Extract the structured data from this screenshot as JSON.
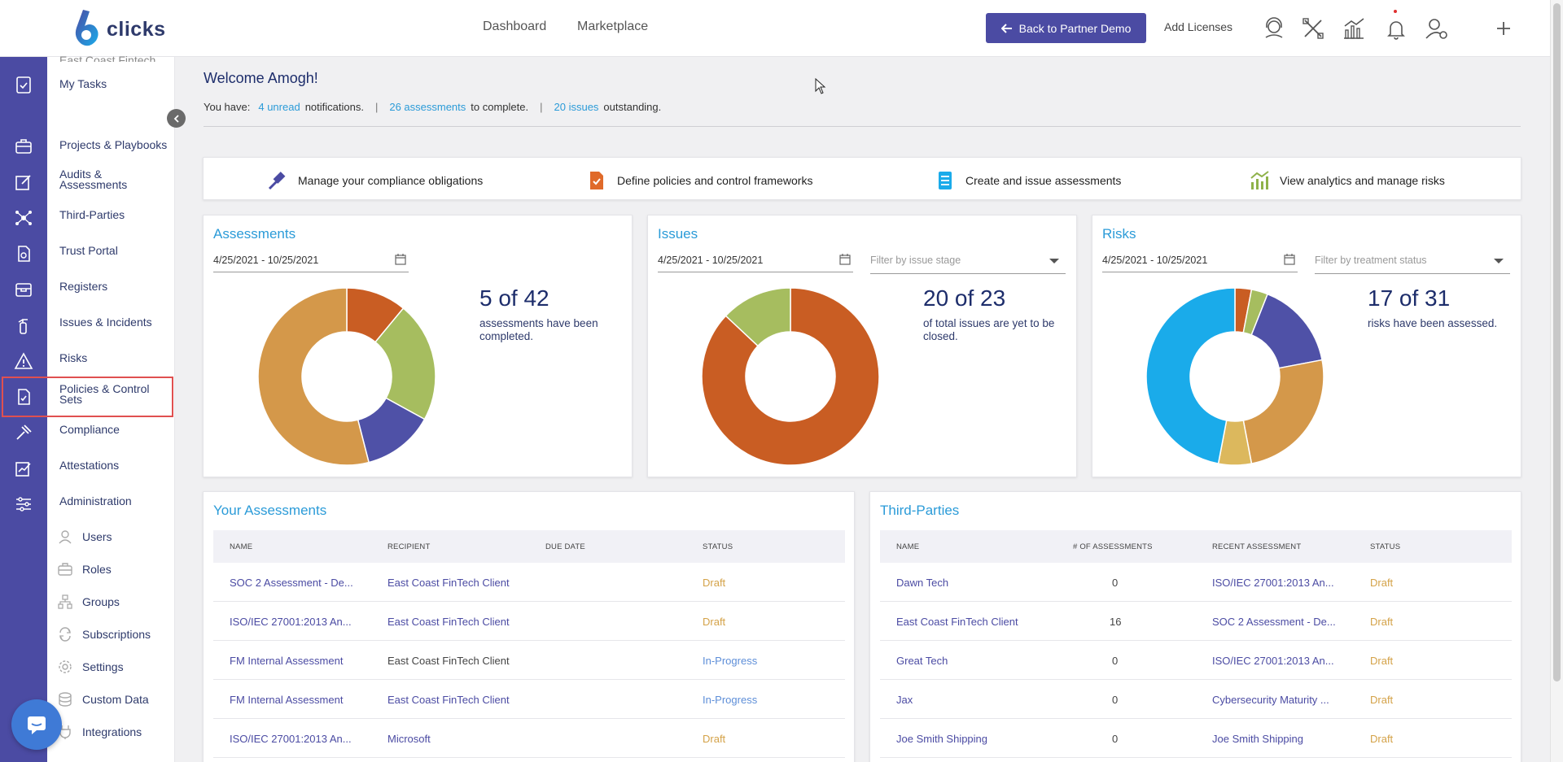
{
  "brand": {
    "logo_text": "clicks"
  },
  "topnav": {
    "dashboard": "Dashboard",
    "marketplace": "Marketplace"
  },
  "header": {
    "back_button": "Back to Partner Demo",
    "add_licenses": "Add Licenses"
  },
  "header_icons": [
    "support-icon",
    "tools-icon",
    "analytics-icon",
    "bell-icon",
    "user-settings-icon",
    "plus-icon"
  ],
  "sidebar": {
    "partial_top": "East Coast Fintech...",
    "items": [
      "My Tasks",
      "Projects & Playbooks",
      "Audits & Assessments",
      "Third-Parties",
      "Trust Portal",
      "Registers",
      "Issues & Incidents",
      "Risks",
      "Policies & Control Sets",
      "Compliance",
      "Attestations",
      "Administration"
    ],
    "admin_items": [
      "Users",
      "Roles",
      "Groups",
      "Subscriptions",
      "Settings",
      "Custom Data",
      "Integrations"
    ],
    "highlighted": "Policies & Control Sets"
  },
  "welcome": {
    "title": "Welcome Amogh!",
    "prefix": "You have:",
    "notifications_link": "4 unread",
    "notifications_text": "notifications.",
    "assessments_link": "26 assessments",
    "assessments_text": "to complete.",
    "issues_link": "20 issues",
    "issues_text": "outstanding.",
    "separator": "|"
  },
  "quick_actions": [
    "Manage your compliance obligations",
    "Define policies and control frameworks",
    "Create and issue assessments",
    "View analytics and manage risks"
  ],
  "colors": {
    "primary": "#4b4ba3",
    "link": "#2b9bd8",
    "draft": "#d4a248",
    "in_progress": "#5d8ed8",
    "highlight": "#e05050"
  },
  "cards": {
    "assessments": {
      "title": "Assessments",
      "date_range": "4/25/2021 - 10/25/2021",
      "stat": "5 of 42",
      "stat_text": "assessments have been completed."
    },
    "issues": {
      "title": "Issues",
      "date_range": "4/25/2021 - 10/25/2021",
      "filter_placeholder": "Filter by issue stage",
      "stat": "20 of 23",
      "stat_text": "of total issues are yet to be closed."
    },
    "risks": {
      "title": "Risks",
      "date_range": "4/25/2021 - 10/25/2021",
      "filter_placeholder": "Filter by treatment status",
      "stat": "17 of 31",
      "stat_text": "risks have been assessed."
    }
  },
  "chart_data": [
    {
      "type": "pie",
      "chart": "assessments",
      "slices": [
        {
          "value": 11,
          "color": "#c95d23"
        },
        {
          "value": 22,
          "color": "#a6bd5f"
        },
        {
          "value": 13,
          "color": "#4f51a7"
        },
        {
          "value": 54,
          "color": "#d4984a"
        }
      ]
    },
    {
      "type": "pie",
      "chart": "issues",
      "slices": [
        {
          "value": 87,
          "color": "#c95d23"
        },
        {
          "value": 13,
          "color": "#a6bd5f"
        }
      ]
    },
    {
      "type": "pie",
      "chart": "risks",
      "slices": [
        {
          "value": 3,
          "color": "#c95d23"
        },
        {
          "value": 3,
          "color": "#a6bd5f"
        },
        {
          "value": 16,
          "color": "#4f51a7"
        },
        {
          "value": 25,
          "color": "#d4984a"
        },
        {
          "value": 6,
          "color": "#dcb85d"
        },
        {
          "value": 47,
          "color": "#1aabea"
        }
      ]
    }
  ],
  "your_assessments": {
    "title": "Your Assessments",
    "columns": [
      "NAME",
      "RECIPIENT",
      "DUE DATE",
      "STATUS"
    ],
    "rows": [
      {
        "name": "SOC 2 Assessment - De...",
        "recipient": "East Coast FinTech Client",
        "due": "",
        "status": "Draft"
      },
      {
        "name": "ISO/IEC 27001:2013 An...",
        "recipient": "East Coast FinTech Client",
        "due": "",
        "status": "Draft"
      },
      {
        "name": "FM Internal Assessment",
        "recipient": "East Coast FinTech Client",
        "due": "",
        "status": "In-Progress"
      },
      {
        "name": "FM Internal Assessment",
        "recipient": "East Coast FinTech Client",
        "due": "",
        "status": "In-Progress"
      },
      {
        "name": "ISO/IEC 27001:2013 An...",
        "recipient": "Microsoft",
        "due": "",
        "status": "Draft"
      }
    ]
  },
  "third_parties": {
    "title": "Third-Parties",
    "columns": [
      "NAME",
      "# OF ASSESSMENTS",
      "RECENT ASSESSMENT",
      "STATUS"
    ],
    "rows": [
      {
        "name": "Dawn Tech",
        "count": "0",
        "recent": "ISO/IEC 27001:2013 An...",
        "status": "Draft"
      },
      {
        "name": "East Coast FinTech Client",
        "count": "16",
        "recent": "SOC 2 Assessment - De...",
        "status": "Draft"
      },
      {
        "name": "Great Tech",
        "count": "0",
        "recent": "ISO/IEC 27001:2013 An...",
        "status": "Draft"
      },
      {
        "name": "Jax",
        "count": "0",
        "recent": "Cybersecurity Maturity ...",
        "status": "Draft"
      },
      {
        "name": "Joe Smith Shipping",
        "count": "0",
        "recent": "Joe Smith Shipping",
        "status": "Draft"
      }
    ]
  }
}
